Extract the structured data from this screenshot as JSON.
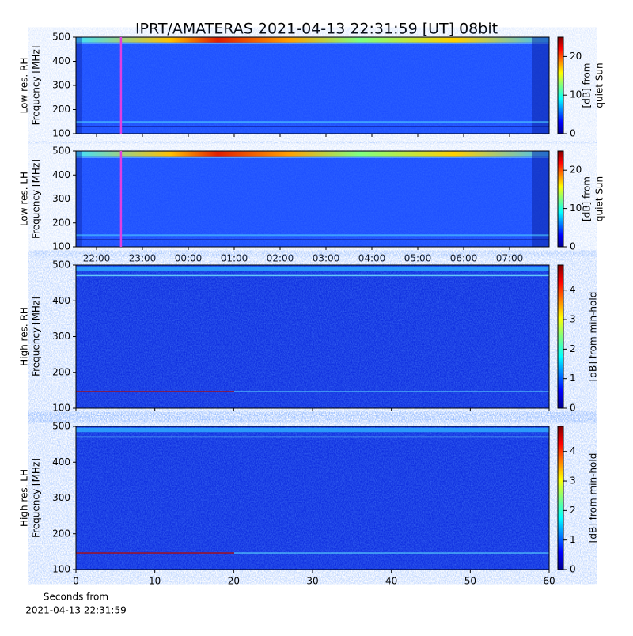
{
  "title": "IPRT/AMATERAS 2021-04-13 22:31:59 [UT]   08bit",
  "chart_data": [
    {
      "type": "heatmap",
      "ylabel": [
        "Low res. RH",
        "Frequency [MHz]"
      ],
      "xlim": [
        21.552,
        31.862
      ],
      "xticks": [
        22,
        23,
        24,
        25,
        26,
        27,
        28,
        29,
        30,
        31
      ],
      "xtick_labels_shown": false,
      "ylim": [
        100,
        500
      ],
      "yticks": [
        100,
        200,
        300,
        400,
        500
      ],
      "marker_x": 22.533,
      "marker_color": "#e040e0",
      "colorbar": {
        "label": [
          "[dB] from",
          "quiet Sun"
        ],
        "lim": [
          0,
          25
        ],
        "ticks": [
          0,
          10,
          20
        ],
        "cmap": "jet"
      }
    },
    {
      "type": "heatmap",
      "ylabel": [
        "Low res. LH",
        "Frequency [MHz]"
      ],
      "xlim": [
        21.552,
        31.862
      ],
      "xticks": [
        {
          "value": 22,
          "label": "22:00"
        },
        {
          "value": 23,
          "label": "23:00"
        },
        {
          "value": 24,
          "label": "00:00"
        },
        {
          "value": 25,
          "label": "01:00"
        },
        {
          "value": 26,
          "label": "02:00"
        },
        {
          "value": 27,
          "label": "03:00"
        },
        {
          "value": 28,
          "label": "04:00"
        },
        {
          "value": 29,
          "label": "05:00"
        },
        {
          "value": 30,
          "label": "06:00"
        },
        {
          "value": 31,
          "label": "07:00"
        }
      ],
      "xtick_labels_shown": true,
      "ylim": [
        100,
        500
      ],
      "yticks": [
        100,
        200,
        300,
        400,
        500
      ],
      "marker_x": 22.533,
      "marker_color": "#e040e0",
      "colorbar": {
        "label": [
          "[dB] from",
          "quiet Sun"
        ],
        "lim": [
          0,
          25
        ],
        "ticks": [
          0,
          10,
          20
        ],
        "cmap": "jet"
      }
    },
    {
      "type": "heatmap",
      "ylabel": [
        "High res. RH",
        "Frequency [MHz]"
      ],
      "xlim": [
        0,
        60
      ],
      "xticks": [
        0,
        10,
        20,
        30,
        40,
        50,
        60
      ],
      "xtick_labels_shown": false,
      "ylim": [
        100,
        500
      ],
      "yticks": [
        100,
        200,
        300,
        400,
        500
      ],
      "colorbar": {
        "label": [
          "[dB] from min-hold"
        ],
        "lim": [
          0,
          4.85
        ],
        "ticks": [
          0,
          1,
          2,
          3,
          4
        ],
        "cmap": "jet"
      }
    },
    {
      "type": "heatmap",
      "ylabel": [
        "High res. LH",
        "Frequency [MHz]"
      ],
      "xlim": [
        0,
        60
      ],
      "xticks": [
        0,
        10,
        20,
        30,
        40,
        50,
        60
      ],
      "xtick_labels_shown": true,
      "xlabel": [
        "Seconds from",
        "2021-04-13 22:31:59"
      ],
      "ylim": [
        100,
        500
      ],
      "yticks": [
        100,
        200,
        300,
        400,
        500
      ],
      "colorbar": {
        "label": [
          "[dB] from min-hold"
        ],
        "lim": [
          0,
          4.85
        ],
        "ticks": [
          0,
          1,
          2,
          3,
          4
        ],
        "cmap": "jet"
      }
    }
  ]
}
